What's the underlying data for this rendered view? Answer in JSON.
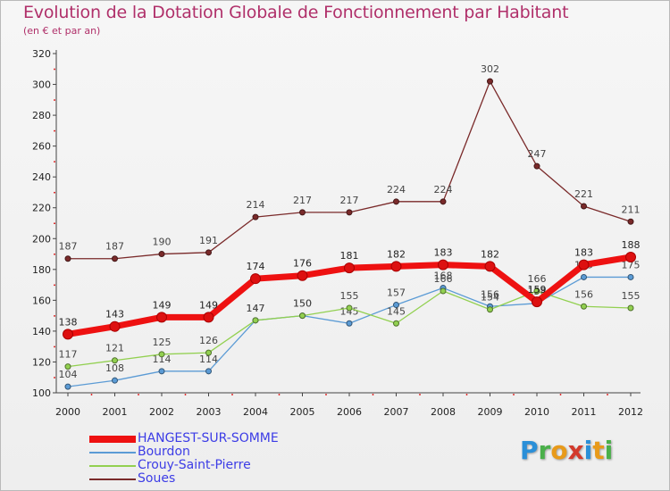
{
  "title": "Evolution de la Dotation Globale de Fonctionnement par Habitant",
  "subtitle": "(en € et par an)",
  "logo": {
    "letters": [
      {
        "ch": "P",
        "color": "#2a8fd8"
      },
      {
        "ch": "r",
        "color": "#4ab04a"
      },
      {
        "ch": "o",
        "color": "#e89a1a"
      },
      {
        "ch": "x",
        "color": "#d33a2c"
      },
      {
        "ch": "i",
        "color": "#2a8fd8"
      },
      {
        "ch": "t",
        "color": "#e89a1a"
      },
      {
        "ch": "i",
        "color": "#4ab04a"
      }
    ]
  },
  "chart_data": {
    "type": "line",
    "title": "Evolution de la Dotation Globale de Fonctionnement par Habitant",
    "subtitle": "(en € et par an)",
    "x": [
      2000,
      2001,
      2002,
      2003,
      2004,
      2005,
      2006,
      2007,
      2008,
      2009,
      2010,
      2011,
      2012
    ],
    "x_tick_labels": [
      "2000",
      "2001",
      "2002",
      "2003",
      "2004",
      "2005",
      "2006",
      "2007",
      "2008",
      "2009",
      "2010",
      "2011",
      "2012"
    ],
    "ylim": [
      100,
      320
    ],
    "y_ticks": [
      100,
      120,
      140,
      160,
      180,
      200,
      220,
      240,
      260,
      280,
      300,
      320
    ],
    "grid": false,
    "legend_position": "bottom-left",
    "series": [
      {
        "name": "Soues",
        "color": "#7a2a2a",
        "width": 1.3,
        "values": [
          187,
          187,
          190,
          191,
          214,
          217,
          217,
          224,
          224,
          302,
          247,
          221,
          211
        ]
      },
      {
        "name": "Bourdon",
        "color": "#5b9bd5",
        "width": 1.3,
        "values": [
          104,
          108,
          114,
          114,
          147,
          150,
          145,
          157,
          168,
          156,
          158,
          175,
          175
        ]
      },
      {
        "name": "Crouy-Saint-Pierre",
        "color": "#92d050",
        "width": 1.3,
        "values": [
          117,
          121,
          125,
          126,
          147,
          150,
          155,
          145,
          166,
          154,
          166,
          156,
          155
        ]
      },
      {
        "name": "HANGEST-SUR-SOMME",
        "color": "#ee1111",
        "width": 7,
        "values": [
          138,
          143,
          149,
          149,
          174,
          176,
          181,
          182,
          183,
          182,
          159,
          183,
          188
        ]
      }
    ],
    "legend_order": [
      "HANGEST-SUR-SOMME",
      "Bourdon",
      "Crouy-Saint-Pierre",
      "Soues"
    ]
  }
}
